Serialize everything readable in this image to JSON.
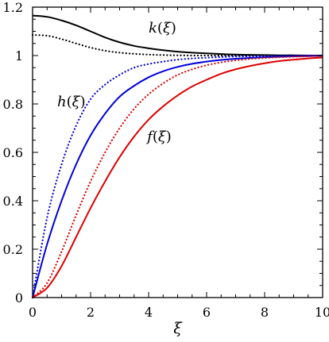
{
  "chart_data": {
    "type": "line",
    "title": "",
    "xlabel": "ξ",
    "ylabel": "",
    "xlim": [
      0,
      10
    ],
    "ylim": [
      0,
      1.2
    ],
    "grid": false,
    "x_ticks": [
      0,
      2,
      4,
      6,
      8,
      10
    ],
    "x_tick_labels": [
      "0",
      "2",
      "4",
      "6",
      "8",
      "10"
    ],
    "y_ticks": [
      0,
      0.2,
      0.4,
      0.6,
      0.8,
      1,
      1.2
    ],
    "y_tick_labels": [
      "0",
      "0.2",
      "0.4",
      "0.6",
      "0.8",
      "1",
      "1.2"
    ],
    "x": [
      0,
      0.5,
      1,
      1.5,
      2,
      2.5,
      3,
      3.5,
      4,
      4.5,
      5,
      5.5,
      6,
      6.5,
      7,
      7.5,
      8,
      8.5,
      9,
      9.5,
      10
    ],
    "series": [
      {
        "key": "k_solid",
        "color": "#000000",
        "dash": "solid",
        "values": [
          1.165,
          1.16,
          1.145,
          1.125,
          1.1,
          1.075,
          1.055,
          1.04,
          1.03,
          1.022,
          1.016,
          1.012,
          1.009,
          1.006,
          1.004,
          1.003,
          1.002,
          1.001,
          1.001,
          1.0,
          1.0
        ]
      },
      {
        "key": "k_dotted",
        "color": "#000000",
        "dash": "dotted",
        "values": [
          1.085,
          1.082,
          1.068,
          1.05,
          1.033,
          1.02,
          1.012,
          1.007,
          1.004,
          1.002,
          1.001,
          1.0,
          1.0,
          1.0,
          1.0,
          1.0,
          1.0,
          1.0,
          1.0,
          1.0,
          1.0
        ]
      },
      {
        "key": "h_dotted",
        "color": "#0000dd",
        "dash": "dotted",
        "values": [
          0,
          0.33,
          0.55,
          0.71,
          0.82,
          0.88,
          0.92,
          0.95,
          0.965,
          0.975,
          0.983,
          0.988,
          0.991,
          0.994,
          0.996,
          0.997,
          0.998,
          0.999,
          0.999,
          1.0,
          1.0
        ]
      },
      {
        "key": "h_solid",
        "color": "#0000dd",
        "dash": "solid",
        "values": [
          0,
          0.22,
          0.4,
          0.55,
          0.67,
          0.76,
          0.83,
          0.875,
          0.91,
          0.935,
          0.953,
          0.966,
          0.975,
          0.982,
          0.987,
          0.99,
          0.993,
          0.995,
          0.997,
          0.998,
          0.999
        ]
      },
      {
        "key": "f_dotted",
        "color": "#dd0000",
        "dash": "dotted",
        "values": [
          0,
          0.06,
          0.19,
          0.34,
          0.48,
          0.6,
          0.7,
          0.78,
          0.84,
          0.885,
          0.92,
          0.943,
          0.96,
          0.972,
          0.98,
          0.986,
          0.99,
          0.993,
          0.995,
          0.997,
          0.998
        ]
      },
      {
        "key": "f_solid",
        "color": "#dd0000",
        "dash": "solid",
        "values": [
          0,
          0.04,
          0.13,
          0.25,
          0.37,
          0.48,
          0.58,
          0.665,
          0.735,
          0.79,
          0.835,
          0.872,
          0.9,
          0.925,
          0.943,
          0.957,
          0.968,
          0.977,
          0.983,
          0.988,
          0.992
        ]
      }
    ],
    "annotations": [
      {
        "key": "k-label",
        "text": "k(ξ)",
        "x": 4.0,
        "y": 1.115
      },
      {
        "key": "h-label",
        "text": "h(ξ)",
        "x": 0.85,
        "y": 0.81
      },
      {
        "key": "f-label",
        "text": "f(ξ)",
        "x": 3.95,
        "y": 0.665
      }
    ]
  }
}
